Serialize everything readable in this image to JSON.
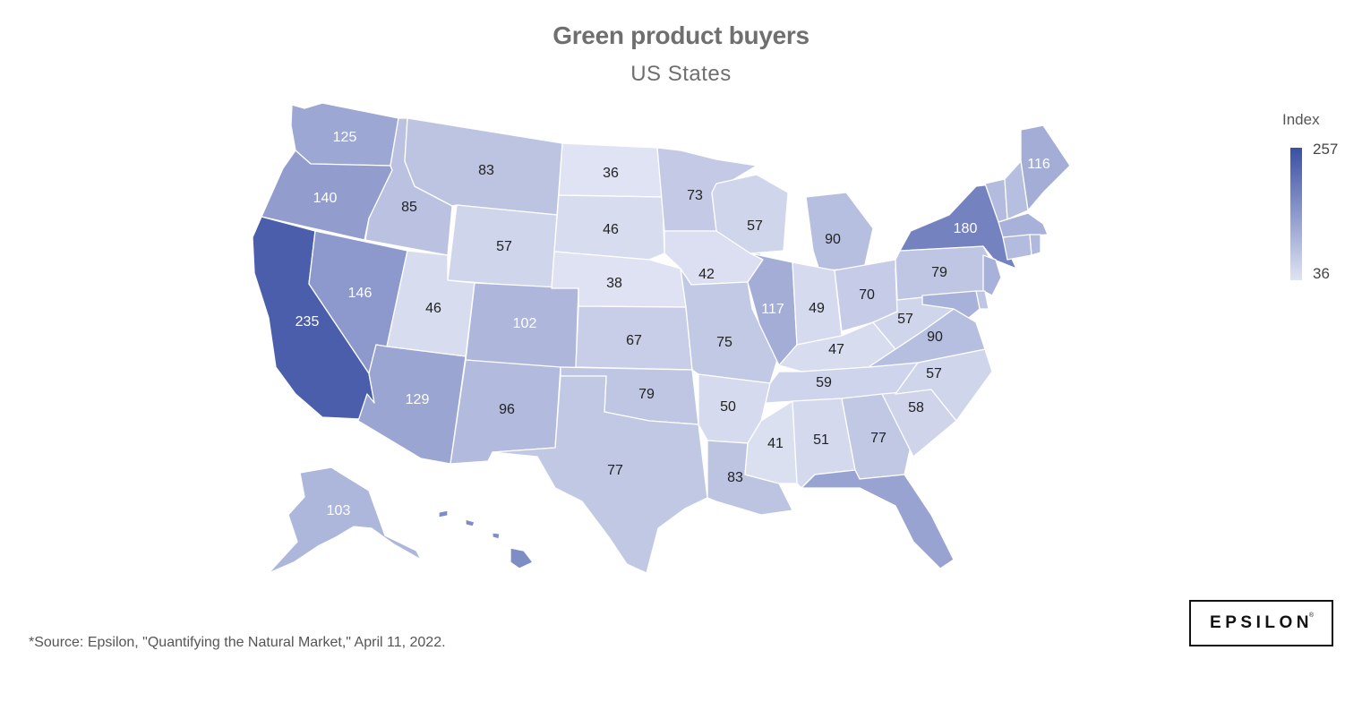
{
  "title": "Green product buyers",
  "subtitle": "US States",
  "legend": {
    "title": "Index",
    "max": "257",
    "min": "36",
    "color_max": "#3b4fa4",
    "color_min": "#dfe3f3",
    "max_value": 257,
    "min_value": 36
  },
  "source": "*Source: Epsilon, \"Quantifying the Natural Market,\" April 11, 2022.",
  "logo": {
    "text": "EPSILON",
    "mark": "®"
  },
  "chart_data": {
    "type": "choropleth",
    "metric": "Index",
    "states": [
      {
        "id": "WA",
        "value": 125
      },
      {
        "id": "OR",
        "value": 140
      },
      {
        "id": "CA",
        "value": 235
      },
      {
        "id": "ID",
        "value": 85
      },
      {
        "id": "NV",
        "value": 146
      },
      {
        "id": "MT",
        "value": 83
      },
      {
        "id": "WY",
        "value": 57
      },
      {
        "id": "UT",
        "value": 46
      },
      {
        "id": "AZ",
        "value": 129
      },
      {
        "id": "CO",
        "value": 102
      },
      {
        "id": "NM",
        "value": 96
      },
      {
        "id": "ND",
        "value": 36
      },
      {
        "id": "SD",
        "value": 46
      },
      {
        "id": "NE",
        "value": 38
      },
      {
        "id": "KS",
        "value": 67
      },
      {
        "id": "OK",
        "value": 79
      },
      {
        "id": "TX",
        "value": 77
      },
      {
        "id": "MN",
        "value": 73
      },
      {
        "id": "IA",
        "value": 42
      },
      {
        "id": "MO",
        "value": 75
      },
      {
        "id": "AR",
        "value": 50
      },
      {
        "id": "LA",
        "value": 83
      },
      {
        "id": "WI",
        "value": 57
      },
      {
        "id": "IL",
        "value": 117
      },
      {
        "id": "MI",
        "value": 90
      },
      {
        "id": "IN",
        "value": 49
      },
      {
        "id": "OH",
        "value": 70
      },
      {
        "id": "KY",
        "value": 47
      },
      {
        "id": "TN",
        "value": 59
      },
      {
        "id": "MS",
        "value": 41
      },
      {
        "id": "AL",
        "value": 51
      },
      {
        "id": "GA",
        "value": 77
      },
      {
        "id": "FL",
        "value": 131
      },
      {
        "id": "SC",
        "value": 58
      },
      {
        "id": "NC",
        "value": 57
      },
      {
        "id": "VA",
        "value": 90
      },
      {
        "id": "WV",
        "value": 57
      },
      {
        "id": "PA",
        "value": 79
      },
      {
        "id": "NY",
        "value": 180
      },
      {
        "id": "ME",
        "value": 116
      },
      {
        "id": "AK",
        "value": 103
      },
      {
        "id": "HI",
        "value": 165,
        "label_shown": false
      },
      {
        "id": "VT",
        "value": 95,
        "label_shown": false
      },
      {
        "id": "NH",
        "value": 90,
        "label_shown": false
      },
      {
        "id": "MA",
        "value": 110,
        "label_shown": false
      },
      {
        "id": "CT",
        "value": 95,
        "label_shown": false
      },
      {
        "id": "RI",
        "value": 100,
        "label_shown": false
      },
      {
        "id": "NJ",
        "value": 110,
        "label_shown": false
      },
      {
        "id": "DE",
        "value": 80,
        "label_shown": false
      },
      {
        "id": "MD",
        "value": 110,
        "label_shown": false
      }
    ]
  }
}
